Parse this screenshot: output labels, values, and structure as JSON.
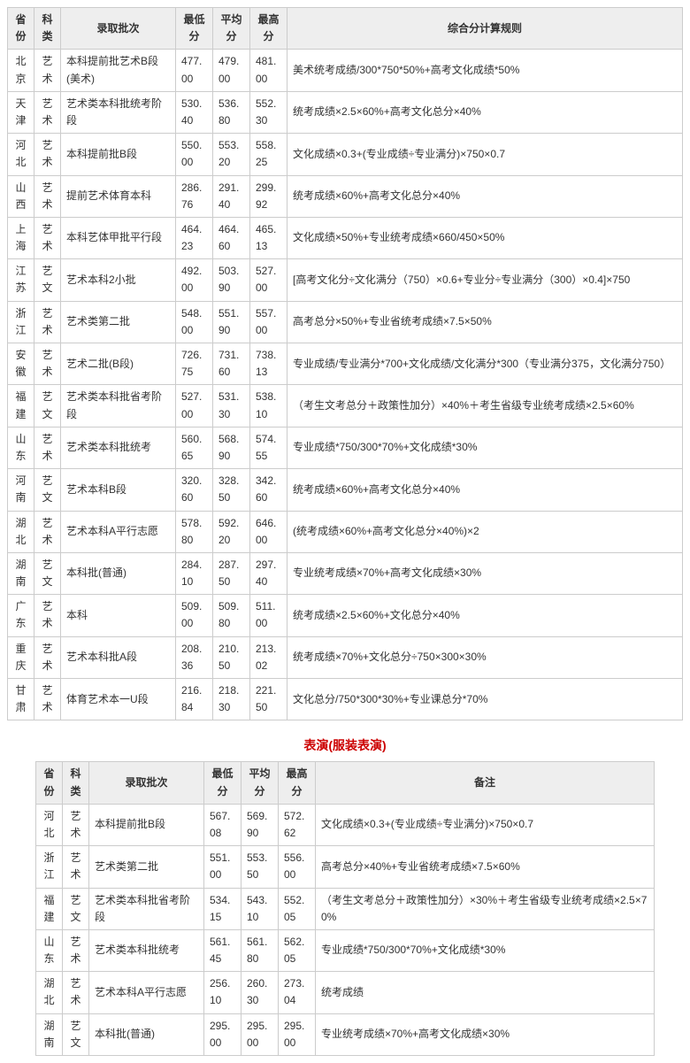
{
  "table1": {
    "headers": [
      "省份",
      "科类",
      "录取批次",
      "最低分",
      "平均分",
      "最高分",
      "综合分计算规则"
    ],
    "rows": [
      [
        "北京",
        "艺术",
        "本科提前批艺术B段(美术)",
        "477.00",
        "479.00",
        "481.00",
        "美术统考成绩/300*750*50%+高考文化成绩*50%"
      ],
      [
        "天津",
        "艺术",
        "艺术类本科批统考阶段",
        "530.40",
        "536.80",
        "552.30",
        "统考成绩×2.5×60%+高考文化总分×40%"
      ],
      [
        "河北",
        "艺术",
        "本科提前批B段",
        "550.00",
        "553.20",
        "558.25",
        "文化成绩×0.3+(专业成绩÷专业满分)×750×0.7"
      ],
      [
        "山西",
        "艺术",
        "提前艺术体育本科",
        "286.76",
        "291.40",
        "299.92",
        "统考成绩×60%+高考文化总分×40%"
      ],
      [
        "上海",
        "艺术",
        "本科艺体甲批平行段",
        "464.23",
        "464.60",
        "465.13",
        "文化成绩×50%+专业统考成绩×660/450×50%"
      ],
      [
        "江苏",
        "艺文",
        "艺术本科2小批",
        "492.00",
        "503.90",
        "527.00",
        "[高考文化分÷文化满分（750）×0.6+专业分÷专业满分（300）×0.4]×750"
      ],
      [
        "浙江",
        "艺术",
        "艺术类第二批",
        "548.00",
        "551.90",
        "557.00",
        "高考总分×50%+专业省统考成绩×7.5×50%"
      ],
      [
        "安徽",
        "艺术",
        "艺术二批(B段)",
        "726.75",
        "731.60",
        "738.13",
        "专业成绩/专业满分*700+文化成绩/文化满分*300（专业满分375，文化满分750）"
      ],
      [
        "福建",
        "艺文",
        "艺术类本科批省考阶段",
        "527.00",
        "531.30",
        "538.10",
        "（考生文考总分＋政策性加分）×40%＋考生省级专业统考成绩×2.5×60%"
      ],
      [
        "山东",
        "艺术",
        "艺术类本科批统考",
        "560.65",
        "568.90",
        "574.55",
        "专业成绩*750/300*70%+文化成绩*30%"
      ],
      [
        "河南",
        "艺文",
        "艺术本科B段",
        "320.60",
        "328.50",
        "342.60",
        "统考成绩×60%+高考文化总分×40%"
      ],
      [
        "湖北",
        "艺术",
        "艺术本科A平行志愿",
        "578.80",
        "592.20",
        "646.00",
        "(统考成绩×60%+高考文化总分×40%)×2"
      ],
      [
        "湖南",
        "艺文",
        "本科批(普通)",
        "284.10",
        "287.50",
        "297.40",
        "专业统考成绩×70%+高考文化成绩×30%"
      ],
      [
        "广东",
        "艺术",
        "本科",
        "509.00",
        "509.80",
        "511.00",
        "统考成绩×2.5×60%+文化总分×40%"
      ],
      [
        "重庆",
        "艺术",
        "艺术本科批A段",
        "208.36",
        "210.50",
        "213.02",
        "统考成绩×70%+文化总分÷750×300×30%"
      ],
      [
        "甘肃",
        "艺术",
        "体育艺术本一U段",
        "216.84",
        "218.30",
        "221.50",
        "文化总分/750*300*30%+专业课总分*70%"
      ]
    ]
  },
  "sectionTitle": "表演(服装表演)",
  "table2": {
    "headers": [
      "省份",
      "科类",
      "录取批次",
      "最低分",
      "平均分",
      "最高分",
      "备注"
    ],
    "rows": [
      [
        "河北",
        "艺术",
        "本科提前批B段",
        "567.08",
        "569.90",
        "572.62",
        "文化成绩×0.3+(专业成绩÷专业满分)×750×0.7"
      ],
      [
        "浙江",
        "艺术",
        "艺术类第二批",
        "551.00",
        "553.50",
        "556.00",
        "高考总分×40%+专业省统考成绩×7.5×60%"
      ],
      [
        "福建",
        "艺文",
        "艺术类本科批省考阶段",
        "534.15",
        "543.10",
        "552.05",
        "（考生文考总分＋政策性加分）×30%＋考生省级专业统考成绩×2.5×70%"
      ],
      [
        "山东",
        "艺术",
        "艺术类本科批统考",
        "561.45",
        "561.80",
        "562.05",
        "专业成绩*750/300*70%+文化成绩*30%"
      ],
      [
        "湖北",
        "艺术",
        "艺术本科A平行志愿",
        "256.10",
        "260.30",
        "273.04",
        "统考成绩"
      ],
      [
        "湖南",
        "艺文",
        "本科批(普通)",
        "295.00",
        "295.00",
        "295.00",
        "专业统考成绩×70%+高考文化成绩×30%"
      ]
    ]
  },
  "colors": {
    "header_bg": "#eeeeee",
    "border": "#cccccc",
    "title": "#cc0000",
    "text": "#333333",
    "background": "#ffffff"
  }
}
